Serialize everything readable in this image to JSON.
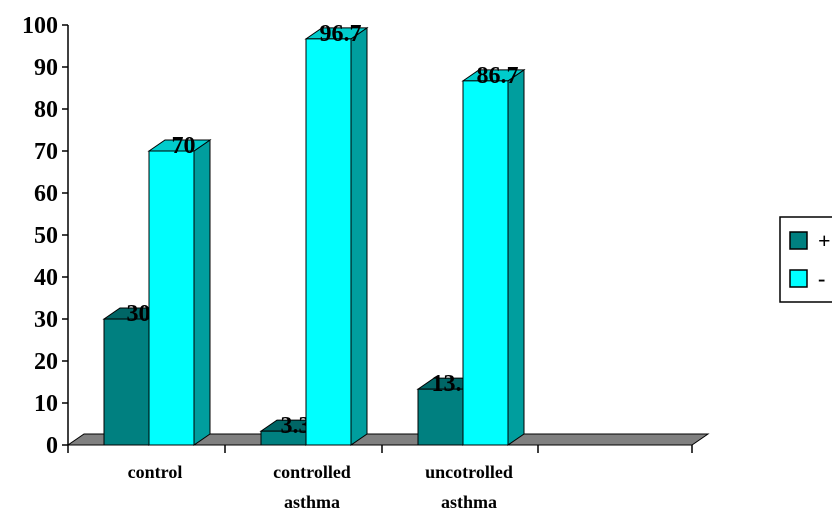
{
  "chart_data": {
    "type": "bar",
    "title": "",
    "xlabel": "",
    "ylabel": "",
    "ylim": [
      0,
      100
    ],
    "yticks": [
      "0",
      "10",
      "20",
      "30",
      "40",
      "50",
      "60",
      "70",
      "80",
      "90",
      "100"
    ],
    "categories": [
      [
        "control"
      ],
      [
        "controlled",
        "asthma"
      ],
      [
        "uncotrolled",
        "asthma"
      ]
    ],
    "series": [
      {
        "name": "+",
        "values": [
          30,
          3.3,
          13.3
        ],
        "labels": [
          "30",
          "3.3",
          "13.3"
        ],
        "color": "#008080"
      },
      {
        "name": "-",
        "values": [
          70,
          96.7,
          86.7
        ],
        "labels": [
          "70",
          "96.7",
          "86.7"
        ],
        "color": "#00FFFF"
      }
    ],
    "legend": "right",
    "grid": false,
    "style": "3d-clustered-column"
  }
}
